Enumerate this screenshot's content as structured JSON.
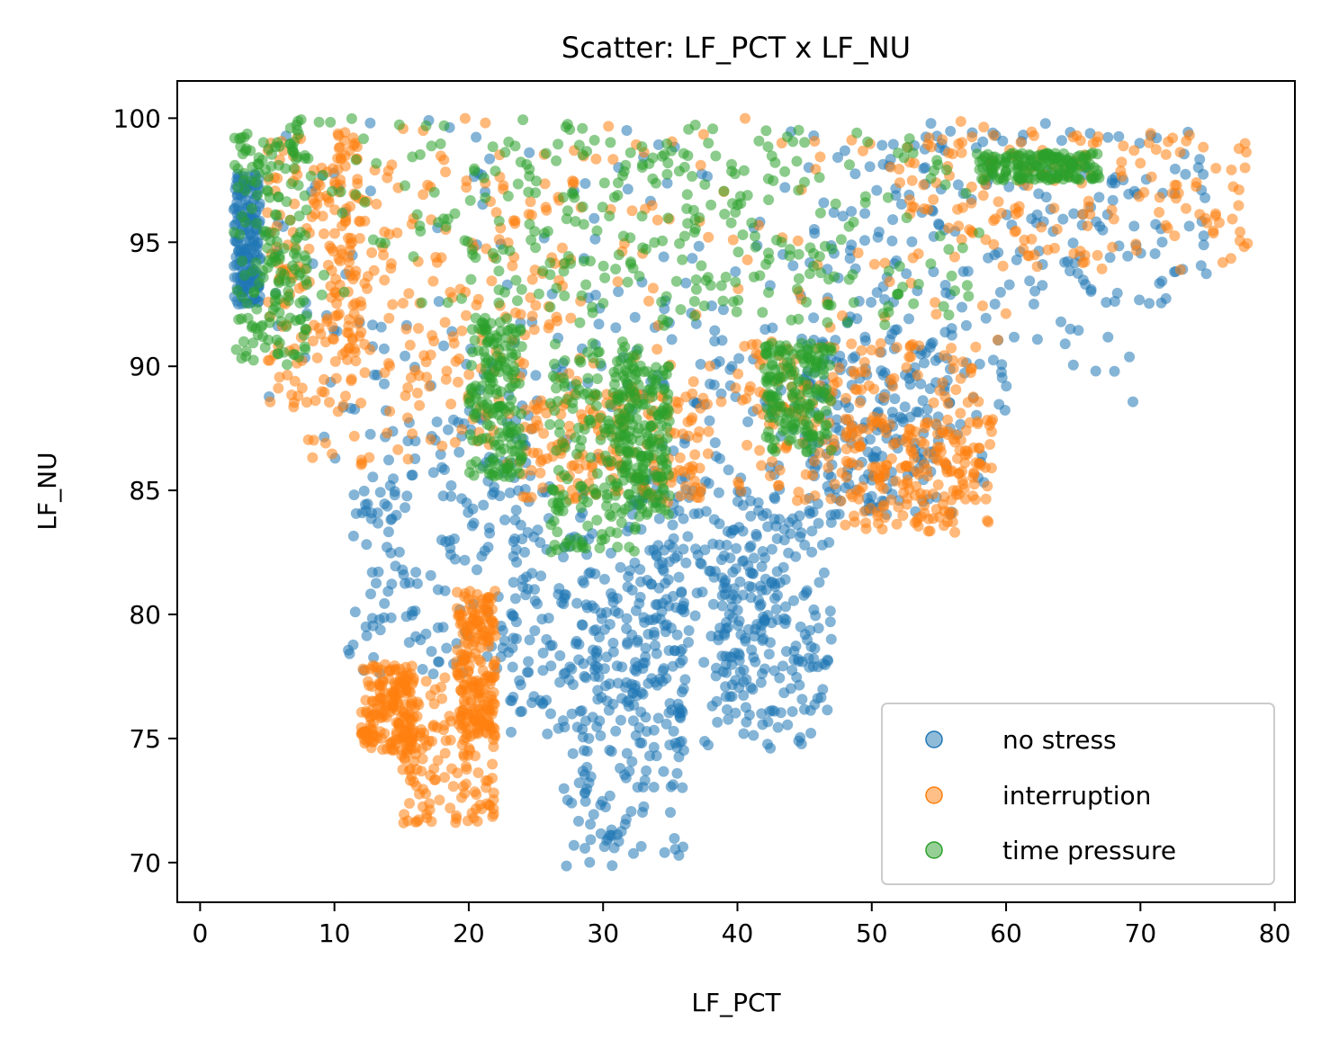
{
  "chart_data": {
    "type": "scatter",
    "title": "Scatter: LF_PCT x LF_NU",
    "xlabel": "LF_PCT",
    "ylabel": "LF_NU",
    "xlim": [
      -1.7,
      81.5
    ],
    "ylim": [
      68.4,
      101.5
    ],
    "xticks": [
      0,
      10,
      20,
      30,
      40,
      50,
      60,
      70,
      80
    ],
    "yticks": [
      70,
      75,
      80,
      85,
      90,
      95,
      100
    ],
    "grid": false,
    "legend_position": "lower right",
    "series": [
      {
        "name": "no stress",
        "color": "#1f77b4",
        "regions": [
          {
            "x": [
              2.5,
              4.5
            ],
            "y": [
              92.5,
              97.8
            ]
          },
          {
            "x": [
              5,
              70
            ],
            "y": [
              88,
              100
            ]
          },
          {
            "x": [
              45,
              75
            ],
            "y": [
              92.5,
              99.5
            ]
          },
          {
            "x": [
              9,
              60
            ],
            "y": [
              84,
              92
            ]
          },
          {
            "x": [
              11,
              25
            ],
            "y": [
              77.5,
              88
            ]
          },
          {
            "x": [
              23,
              36
            ],
            "y": [
              75,
              85
            ]
          },
          {
            "x": [
              27,
              36
            ],
            "y": [
              69.8,
              81
            ]
          },
          {
            "x": [
              32,
              46
            ],
            "y": [
              74.5,
              86
            ]
          },
          {
            "x": [
              38,
              47
            ],
            "y": [
              76,
              84
            ]
          },
          {
            "x": [
              45,
              56
            ],
            "y": [
              84,
              92
            ]
          }
        ]
      },
      {
        "name": "interruption",
        "color": "#ff7f0e",
        "regions": [
          {
            "x": [
              5,
              12
            ],
            "y": [
              88.3,
              99.5
            ]
          },
          {
            "x": [
              8,
              28
            ],
            "y": [
              86,
              98
            ]
          },
          {
            "x": [
              10,
              60
            ],
            "y": [
              88,
              100
            ]
          },
          {
            "x": [
              52,
              78
            ],
            "y": [
              93.8,
              99.5
            ]
          },
          {
            "x": [
              40,
              58
            ],
            "y": [
              84.5,
              91
            ]
          },
          {
            "x": [
              48,
              59
            ],
            "y": [
              83.3,
              88
            ]
          },
          {
            "x": [
              12,
              16
            ],
            "y": [
              74.5,
              78
            ]
          },
          {
            "x": [
              15,
              22
            ],
            "y": [
              71.5,
              77.5
            ]
          },
          {
            "x": [
              19,
              22
            ],
            "y": [
              75,
              81
            ]
          },
          {
            "x": [
              24,
              38
            ],
            "y": [
              84.5,
              89
            ]
          }
        ]
      },
      {
        "name": "time pressure",
        "color": "#2ca02c",
        "regions": [
          {
            "x": [
              2.5,
              8
            ],
            "y": [
              90,
              100
            ]
          },
          {
            "x": [
              5,
              45
            ],
            "y": [
              92.5,
              100
            ]
          },
          {
            "x": [
              20,
              58
            ],
            "y": [
              91.5,
              99.5
            ]
          },
          {
            "x": [
              58,
              67
            ],
            "y": [
              97.5,
              98.6
            ]
          },
          {
            "x": [
              20,
              24
            ],
            "y": [
              85.5,
              92
            ]
          },
          {
            "x": [
              26,
              33
            ],
            "y": [
              82.5,
              91
            ]
          },
          {
            "x": [
              31,
              35
            ],
            "y": [
              84,
              90
            ]
          },
          {
            "x": [
              42,
              47
            ],
            "y": [
              86.5,
              91
            ]
          }
        ]
      }
    ]
  }
}
